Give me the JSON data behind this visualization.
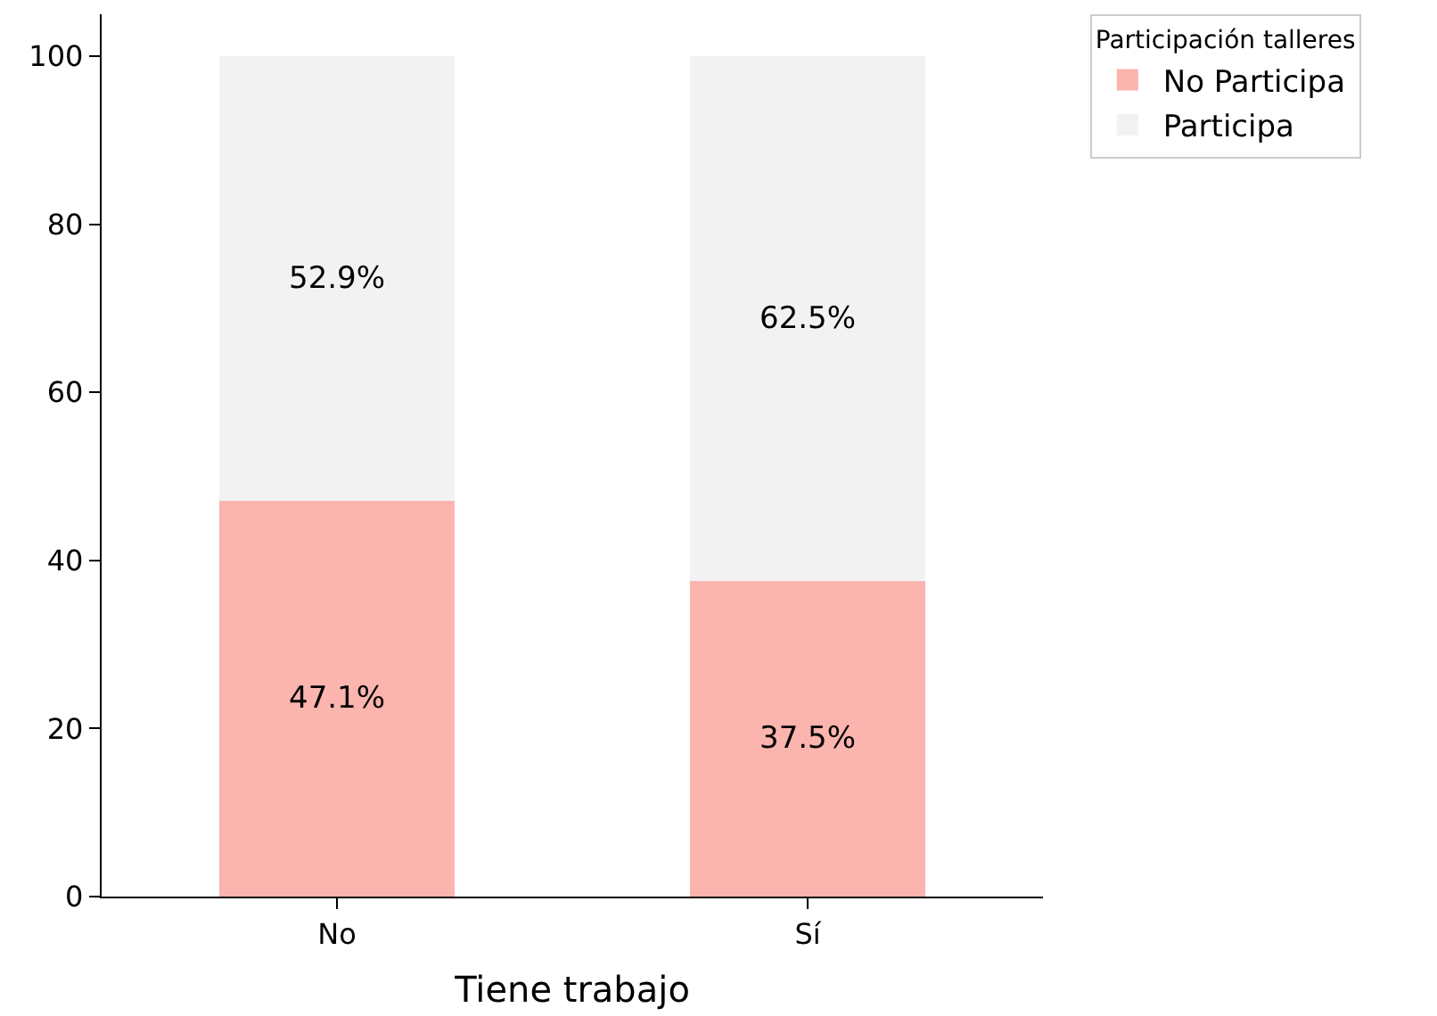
{
  "chart_data": {
    "type": "bar",
    "stacked": true,
    "xlabel": "Tiene trabajo",
    "legend_title": "Participación talleres",
    "legend": "top right",
    "categories": [
      "No",
      "Sí"
    ],
    "series": [
      {
        "name": "No Participa",
        "color": "#fbb4ae",
        "values": [
          47.1,
          37.5
        ],
        "value_labels": [
          "47.1%",
          "37.5%"
        ]
      },
      {
        "name": "Participa",
        "color": "#f2f2f2",
        "values": [
          52.9,
          62.5
        ],
        "value_labels": [
          "52.9%",
          "62.5%"
        ]
      }
    ],
    "ylim": [
      0,
      105
    ],
    "yticks": [
      0,
      20,
      40,
      60,
      80,
      100
    ]
  }
}
